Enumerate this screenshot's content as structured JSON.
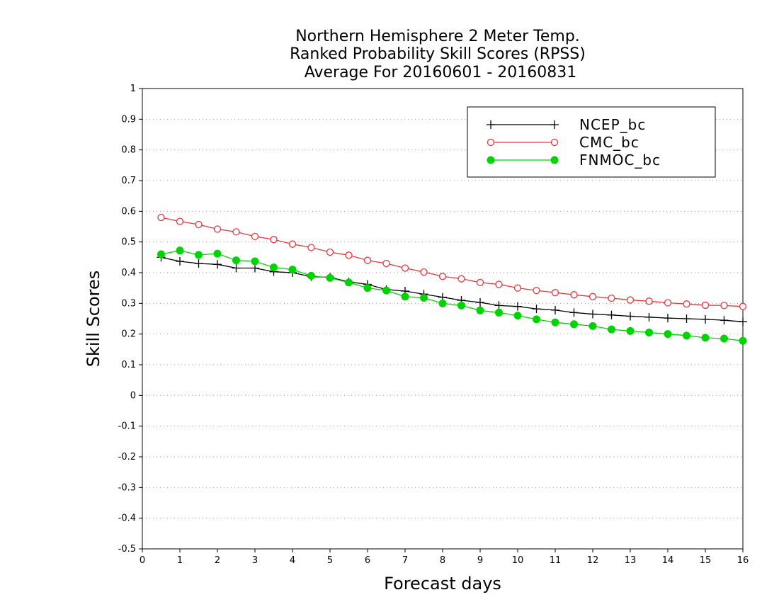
{
  "chart_data": {
    "type": "line",
    "title_lines": [
      "Northern Hemisphere 2 Meter Temp.",
      "Ranked Probability Skill Scores (RPSS)",
      "Average For 20160601 - 20160831"
    ],
    "xlabel": "Forecast days",
    "ylabel": "Skill Scores",
    "xlim": [
      0,
      16
    ],
    "ylim": [
      -0.5,
      1
    ],
    "x_ticks": [
      "0",
      "1",
      "2",
      "3",
      "4",
      "5",
      "6",
      "7",
      "8",
      "9",
      "10",
      "11",
      "12",
      "13",
      "14",
      "15",
      "16"
    ],
    "y_ticks": [
      "-0.5",
      "-0.4",
      "-0.3",
      "-0.2",
      "-0.1",
      "0",
      "0.1",
      "0.2",
      "0.3",
      "0.4",
      "0.5",
      "0.6",
      "0.7",
      "0.8",
      "0.9",
      "1"
    ],
    "grid": "horizontal dotted",
    "legend_position": "top-right",
    "x": [
      0.5,
      1,
      1.5,
      2,
      2.5,
      3,
      3.5,
      4,
      4.5,
      5,
      5.5,
      6,
      6.5,
      7,
      7.5,
      8,
      8.5,
      9,
      9.5,
      10,
      10.5,
      11,
      11.5,
      12,
      12.5,
      13,
      13.5,
      14,
      14.5,
      15,
      15.5,
      16
    ],
    "series": [
      {
        "name": "NCEP_bc",
        "color": "#000000",
        "marker": "plus",
        "values": [
          0.45,
          0.437,
          0.43,
          0.427,
          0.415,
          0.415,
          0.403,
          0.4,
          0.387,
          0.385,
          0.37,
          0.362,
          0.345,
          0.34,
          0.33,
          0.32,
          0.31,
          0.303,
          0.293,
          0.29,
          0.282,
          0.278,
          0.27,
          0.265,
          0.262,
          0.258,
          0.255,
          0.252,
          0.25,
          0.248,
          0.245,
          0.24
        ]
      },
      {
        "name": "CMC_bc",
        "color": "#e8363a",
        "marker": "open-circle",
        "values": [
          0.58,
          0.567,
          0.557,
          0.542,
          0.533,
          0.518,
          0.508,
          0.493,
          0.482,
          0.467,
          0.457,
          0.44,
          0.43,
          0.415,
          0.402,
          0.388,
          0.38,
          0.368,
          0.362,
          0.35,
          0.342,
          0.335,
          0.328,
          0.322,
          0.317,
          0.311,
          0.307,
          0.302,
          0.298,
          0.294,
          0.293,
          0.29
        ]
      },
      {
        "name": "FNMOC_bc",
        "color": "#00d400",
        "marker": "filled-circle",
        "values": [
          0.46,
          0.472,
          0.458,
          0.462,
          0.44,
          0.437,
          0.417,
          0.41,
          0.39,
          0.383,
          0.368,
          0.35,
          0.342,
          0.322,
          0.318,
          0.3,
          0.293,
          0.277,
          0.27,
          0.26,
          0.248,
          0.238,
          0.232,
          0.226,
          0.215,
          0.21,
          0.205,
          0.2,
          0.195,
          0.188,
          0.185,
          0.178
        ]
      }
    ]
  }
}
